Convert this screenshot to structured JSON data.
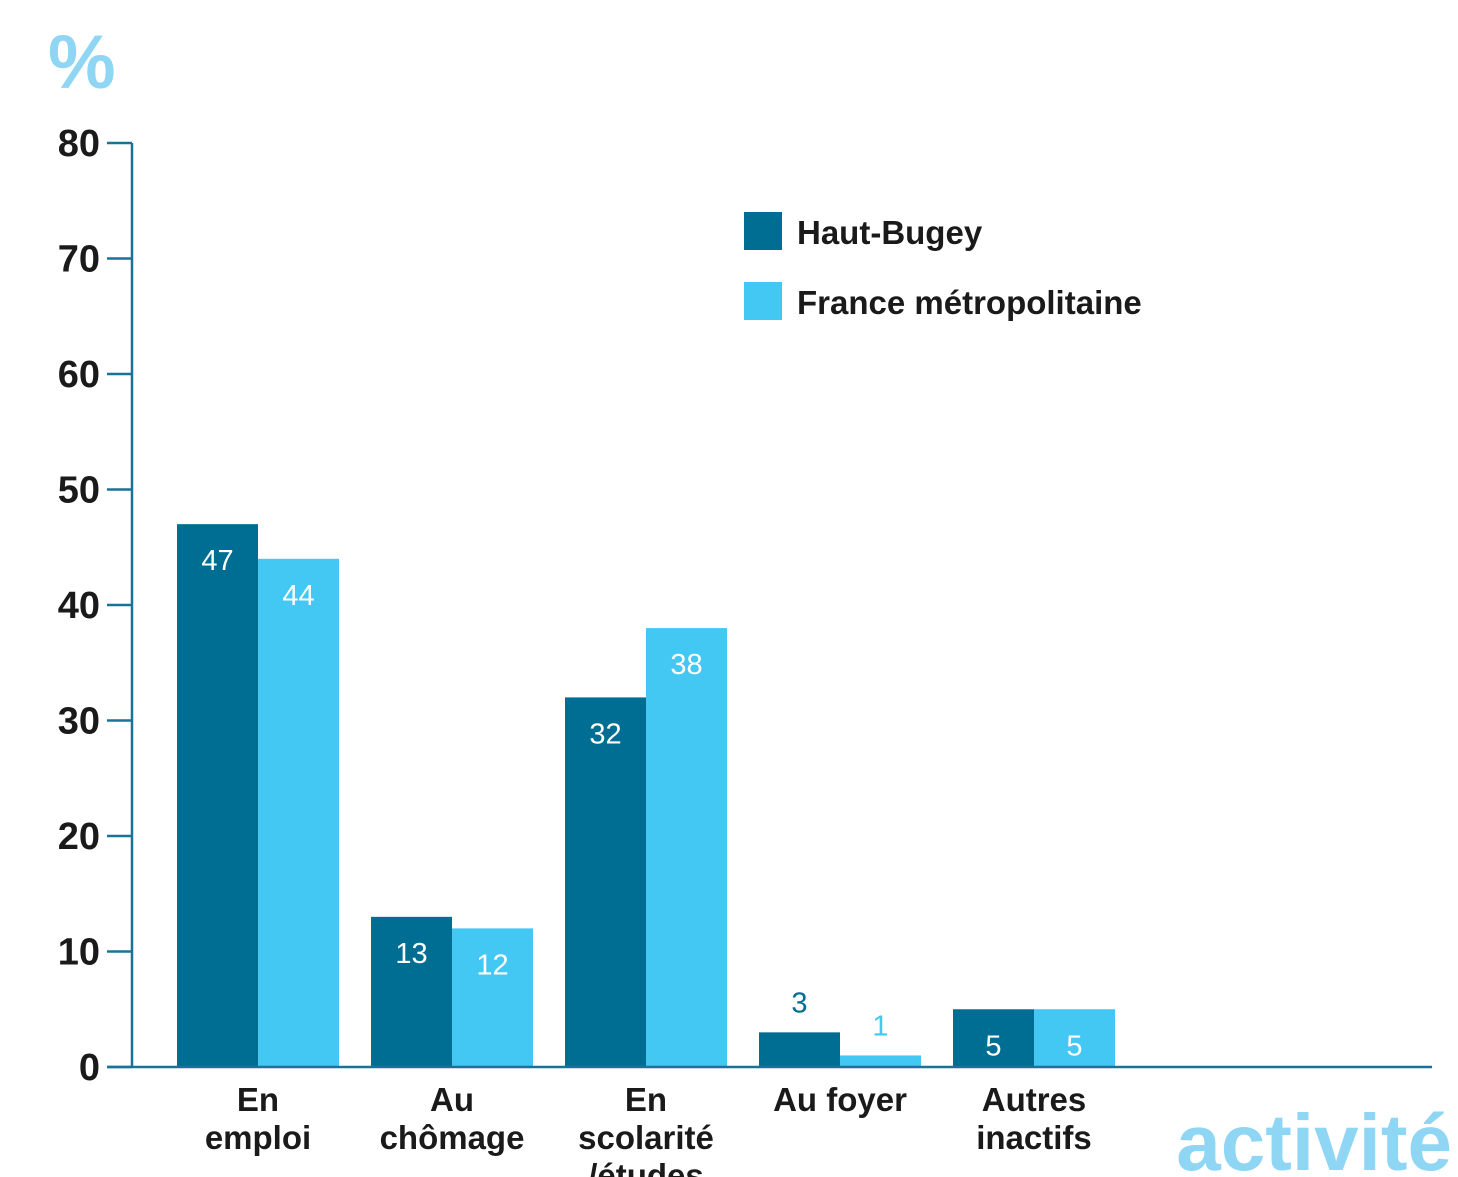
{
  "chart_data": {
    "type": "bar",
    "unit_label": "%",
    "categories": [
      [
        "En",
        "emploi"
      ],
      [
        "Au",
        "chômage"
      ],
      [
        "En",
        "scolarité",
        "/études"
      ],
      [
        "Au foyer"
      ],
      [
        "Autres",
        "inactifs"
      ]
    ],
    "series": [
      {
        "name": "Haut-Bugey",
        "values": [
          47,
          13,
          32,
          3,
          5
        ],
        "labels": [
          "47",
          "13",
          "32",
          "3",
          "5"
        ],
        "color": "#006e93"
      },
      {
        "name": "France métropolitaine",
        "values": [
          44,
          12,
          38,
          1,
          5
        ],
        "labels": [
          "44",
          "12",
          "38",
          "1",
          "5"
        ],
        "color": "#43c7f3"
      }
    ],
    "ylim": [
      0,
      80
    ],
    "yticks": [
      0,
      10,
      20,
      30,
      40,
      50,
      60,
      70,
      80
    ],
    "grid": false,
    "legend_position": "top-right",
    "axis_color": "#1a7296",
    "accent_color": "#8ed6f4",
    "corner_word": "activité"
  }
}
